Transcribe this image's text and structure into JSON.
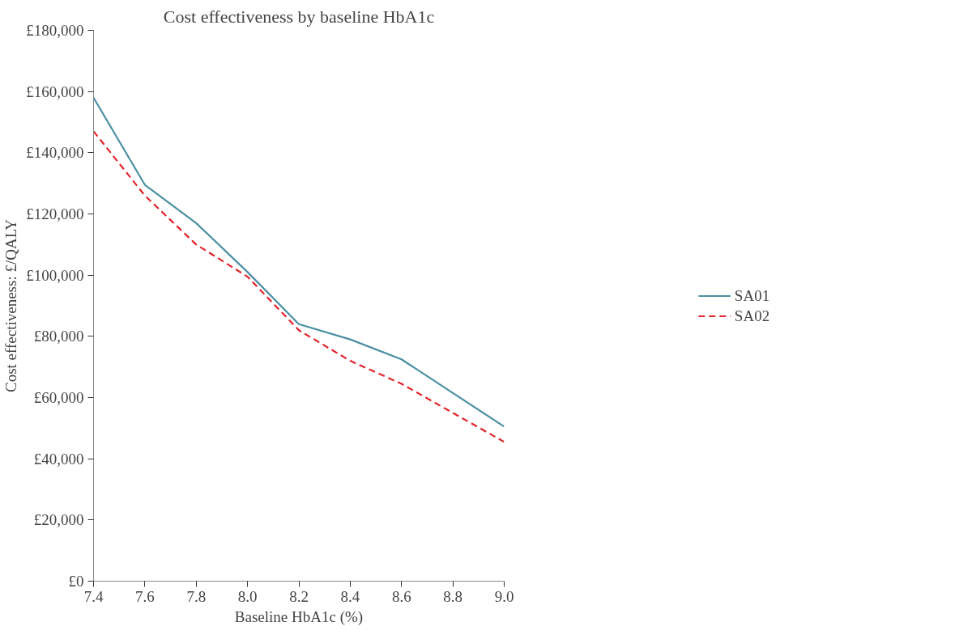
{
  "chart_data": {
    "type": "line",
    "title": "Cost effectiveness by baseline HbA1c",
    "xlabel": "Baseline HbA1c (%)",
    "ylabel": "Cost effectiveness: £/QALY",
    "x": [
      7.4,
      7.6,
      7.8,
      8.0,
      8.2,
      8.4,
      8.6,
      8.8,
      9.0
    ],
    "series": [
      {
        "name": "SA01",
        "color": "#4a8fa3",
        "line_style": "solid",
        "values": [
          158000,
          129500,
          117000,
          101000,
          84000,
          79000,
          72500,
          61500,
          50500
        ]
      },
      {
        "name": "SA02",
        "color": "#e0242a",
        "line_style": "dashed",
        "values": [
          147000,
          126000,
          110000,
          99500,
          82000,
          72000,
          64500,
          55000,
          45500
        ]
      }
    ],
    "xlim": [
      7.4,
      9.0
    ],
    "xticks": [
      {
        "value": 7.4,
        "label": "7.4"
      },
      {
        "value": 7.6,
        "label": "7.6"
      },
      {
        "value": 7.8,
        "label": "7.8"
      },
      {
        "value": 8.0,
        "label": "8.0"
      },
      {
        "value": 8.2,
        "label": "8.2"
      },
      {
        "value": 8.4,
        "label": "8.4"
      },
      {
        "value": 8.6,
        "label": "8.6"
      },
      {
        "value": 8.8,
        "label": "8.8"
      },
      {
        "value": 9.0,
        "label": "9.0"
      }
    ],
    "ylim": [
      0,
      180000
    ],
    "yticks": [
      {
        "value": 0,
        "label": "£0"
      },
      {
        "value": 20000,
        "label": "£20,000"
      },
      {
        "value": 40000,
        "label": "£40,000"
      },
      {
        "value": 60000,
        "label": "£60,000"
      },
      {
        "value": 80000,
        "label": "£80,000"
      },
      {
        "value": 100000,
        "label": "£100,000"
      },
      {
        "value": 120000,
        "label": "£120,000"
      },
      {
        "value": 140000,
        "label": "£140,000"
      },
      {
        "value": 160000,
        "label": "£160,000"
      },
      {
        "value": 180000,
        "label": "£180,000"
      }
    ],
    "grid": false,
    "legend": "right",
    "marker": "none"
  }
}
